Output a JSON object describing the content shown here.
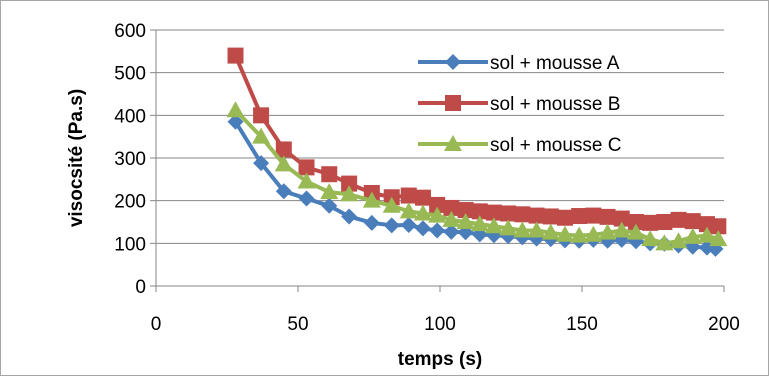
{
  "chart_data": {
    "type": "line",
    "title": "",
    "xlabel": "temps (s)",
    "ylabel": "visocsité (Pa.s)",
    "xlim": [
      0,
      200
    ],
    "ylim": [
      0,
      600
    ],
    "xticks": [
      0,
      50,
      100,
      150,
      200
    ],
    "yticks": [
      0,
      100,
      200,
      300,
      400,
      500,
      600
    ],
    "grid": "horizontal",
    "legend_position": "top-right",
    "series": [
      {
        "name": "sol + mousse A",
        "color": "#4a7ebb",
        "marker": "diamond",
        "x": [
          28,
          37,
          45,
          53,
          61,
          68,
          76,
          83,
          89,
          94,
          99,
          104,
          109,
          114,
          119,
          124,
          129,
          134,
          139,
          144,
          149,
          154,
          159,
          164,
          169,
          174,
          179,
          184,
          189,
          194,
          197
        ],
        "y": [
          385,
          288,
          222,
          205,
          188,
          163,
          148,
          142,
          143,
          135,
          130,
          127,
          126,
          121,
          119,
          117,
          114,
          111,
          110,
          107,
          106,
          108,
          106,
          108,
          105,
          100,
          99,
          95,
          92,
          90,
          87
        ]
      },
      {
        "name": "sol + mousse B",
        "color": "#be4b48",
        "marker": "square",
        "x": [
          28,
          37,
          45,
          53,
          61,
          68,
          76,
          83,
          89,
          94,
          99,
          104,
          109,
          114,
          119,
          124,
          129,
          134,
          139,
          144,
          149,
          154,
          159,
          164,
          169,
          174,
          179,
          184,
          189,
          194,
          198
        ],
        "y": [
          540,
          400,
          320,
          278,
          262,
          240,
          218,
          208,
          212,
          207,
          190,
          183,
          178,
          175,
          172,
          170,
          168,
          165,
          163,
          160,
          164,
          165,
          162,
          158,
          150,
          148,
          150,
          155,
          152,
          145,
          140
        ]
      },
      {
        "name": "sol + mousse C",
        "color": "#98b954",
        "marker": "triangle",
        "x": [
          28,
          37,
          45,
          53,
          61,
          68,
          76,
          83,
          89,
          94,
          99,
          104,
          109,
          114,
          119,
          124,
          129,
          134,
          139,
          144,
          149,
          154,
          159,
          164,
          169,
          174,
          179,
          184,
          189,
          194,
          198
        ],
        "y": [
          412,
          350,
          285,
          245,
          220,
          215,
          200,
          188,
          175,
          170,
          165,
          155,
          150,
          145,
          140,
          135,
          130,
          130,
          125,
          120,
          118,
          120,
          125,
          130,
          125,
          110,
          100,
          105,
          115,
          118,
          110
        ]
      }
    ]
  }
}
